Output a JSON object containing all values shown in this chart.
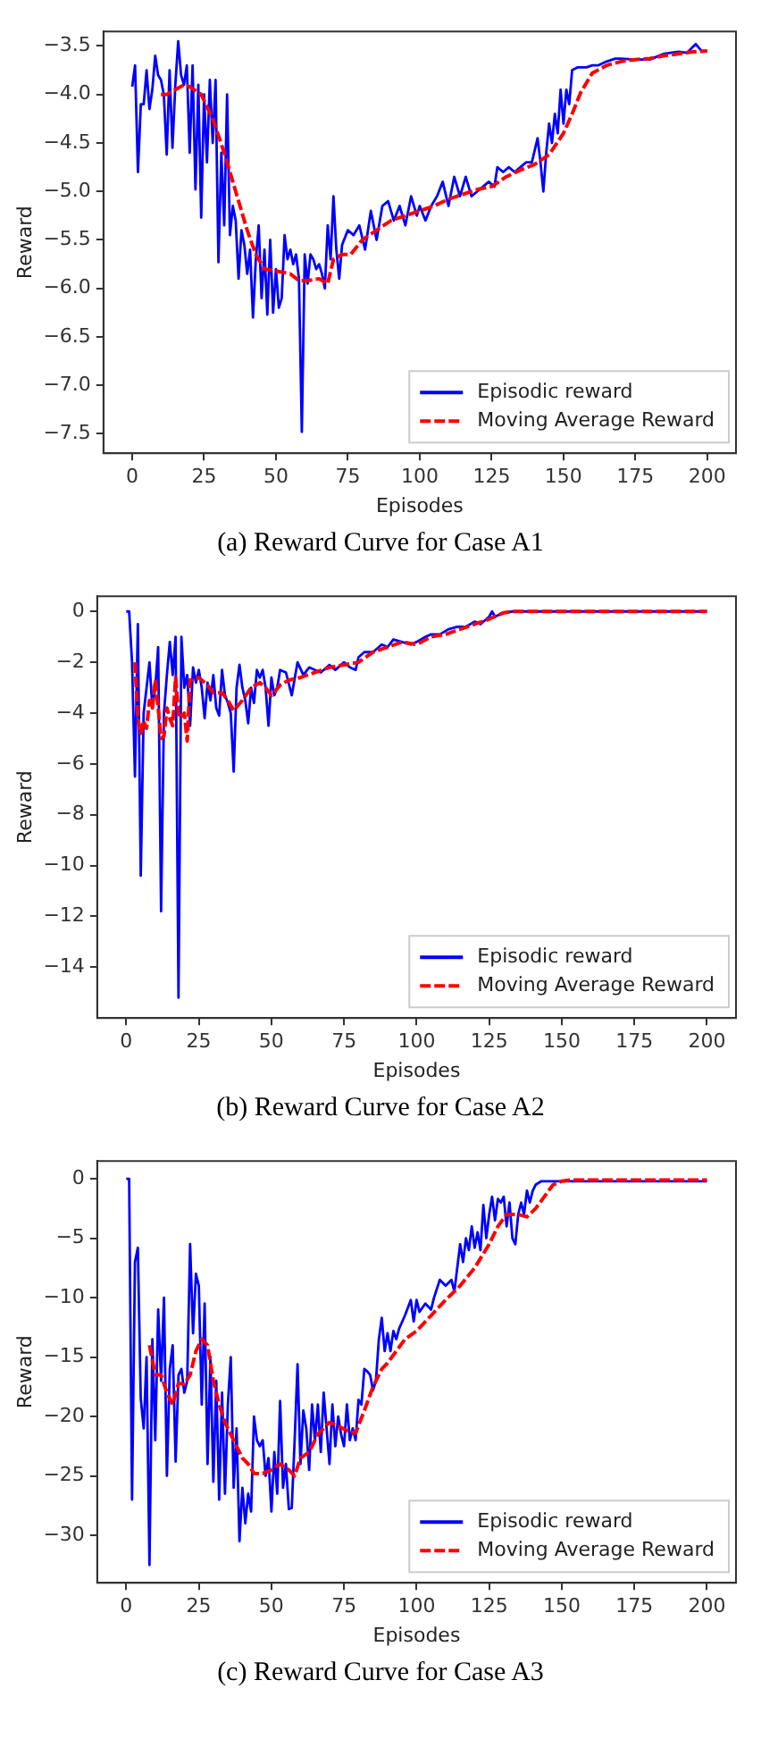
{
  "chart_data": [
    {
      "type": "line",
      "title": "(a) Reward Curve for Case A1",
      "xlabel": "Episodes",
      "ylabel": "Reward",
      "xlim": [
        -10,
        210
      ],
      "xticks": [
        0,
        25,
        50,
        75,
        100,
        125,
        150,
        175,
        200
      ],
      "ylim": [
        -7.7,
        -3.35
      ],
      "yticks": [
        -7.5,
        {
          "value": -7,
          "label": "−7.0"
        },
        -6.5,
        {
          "value": -6,
          "label": "−6.0"
        },
        -5.5,
        {
          "value": -5,
          "label": "−5.0"
        },
        -4.5,
        {
          "value": -4,
          "label": "−4.0"
        },
        -3.5
      ],
      "grid": false,
      "legend": "bottom right",
      "marker": "none",
      "series": [
        {
          "name": "Episodic reward",
          "color": "#0000ff",
          "line_style": "solid",
          "x": [
            0,
            1,
            2,
            3,
            4,
            5,
            6,
            7,
            8,
            9,
            10,
            11,
            12,
            13,
            14,
            15,
            16,
            17,
            18,
            19,
            20,
            21,
            22,
            23,
            24,
            25,
            26,
            27,
            28,
            29,
            30,
            31,
            32,
            33,
            34,
            35,
            36,
            37,
            38,
            39,
            40,
            41,
            42,
            43,
            44,
            45,
            46,
            47,
            48,
            49,
            50,
            51,
            52,
            53,
            54,
            55,
            56,
            57,
            58,
            59,
            60,
            61,
            62,
            63,
            64,
            65,
            66,
            67,
            68,
            69,
            70,
            71,
            72,
            73,
            75,
            77,
            79,
            81,
            83,
            85,
            87,
            89,
            91,
            93,
            95,
            97,
            99,
            100,
            102,
            104,
            106,
            108,
            110,
            112,
            114,
            116,
            118,
            120,
            122,
            124,
            126,
            127,
            129,
            131,
            133,
            135,
            137,
            139,
            141,
            142,
            143,
            144,
            145,
            146,
            147,
            148,
            149,
            150,
            151,
            152,
            153,
            155,
            158,
            160,
            162,
            165,
            168,
            170,
            175,
            180,
            185,
            190,
            193,
            196,
            198,
            200
          ],
          "values": [
            -3.92,
            -3.7,
            -4.8,
            -4.1,
            -4.1,
            -3.75,
            -4.15,
            -3.95,
            -3.6,
            -3.8,
            -3.85,
            -4.0,
            -4.62,
            -3.75,
            -4.55,
            -3.9,
            -3.45,
            -3.8,
            -3.9,
            -3.7,
            -4.6,
            -3.7,
            -4.98,
            -3.9,
            -5.27,
            -4.0,
            -4.7,
            -3.85,
            -4.5,
            -3.85,
            -5.73,
            -4.6,
            -5.35,
            -4.0,
            -5.45,
            -5.15,
            -5.3,
            -5.9,
            -5.4,
            -5.55,
            -5.85,
            -5.6,
            -6.3,
            -5.7,
            -5.35,
            -6.1,
            -5.6,
            -6.27,
            -5.5,
            -6.25,
            -5.8,
            -6.2,
            -6.1,
            -5.45,
            -5.7,
            -5.6,
            -5.75,
            -5.65,
            -5.9,
            -7.48,
            -5.65,
            -5.95,
            -5.65,
            -5.7,
            -5.8,
            -5.75,
            -5.85,
            -6.0,
            -5.35,
            -5.7,
            -5.05,
            -5.6,
            -5.9,
            -5.55,
            -5.4,
            -5.45,
            -5.35,
            -5.6,
            -5.2,
            -5.5,
            -5.15,
            -5.1,
            -5.3,
            -5.15,
            -5.35,
            -5.05,
            -5.25,
            -5.15,
            -5.3,
            -5.15,
            -5.05,
            -4.9,
            -5.15,
            -4.85,
            -5.05,
            -4.85,
            -5.05,
            -5.0,
            -4.95,
            -4.9,
            -4.95,
            -4.75,
            -4.8,
            -4.75,
            -4.8,
            -4.75,
            -4.7,
            -4.7,
            -4.45,
            -4.7,
            -5.0,
            -4.6,
            -4.3,
            -4.5,
            -4.2,
            -4.4,
            -3.95,
            -4.3,
            -3.95,
            -4.1,
            -3.75,
            -3.72,
            -3.72,
            -3.7,
            -3.7,
            -3.66,
            -3.63,
            -3.63,
            -3.64,
            -3.64,
            -3.58,
            -3.56,
            -3.57,
            -3.48,
            -3.55,
            -3.56
          ]
        },
        {
          "name": "Moving Average Reward",
          "color": "#ff0000",
          "line_style": "dashed",
          "x": [
            10,
            12,
            15,
            18,
            20,
            24,
            28,
            32,
            36,
            40,
            43,
            46,
            50,
            55,
            58,
            61,
            65,
            68,
            70,
            73,
            76,
            80,
            85,
            90,
            95,
            100,
            105,
            110,
            115,
            120,
            125,
            130,
            135,
            140,
            145,
            150,
            153,
            156,
            160,
            165,
            170,
            175,
            180,
            185,
            190,
            195,
            200
          ],
          "values": [
            -4.0,
            -4.0,
            -3.95,
            -3.9,
            -3.92,
            -4.0,
            -4.25,
            -4.6,
            -5.0,
            -5.4,
            -5.65,
            -5.8,
            -5.82,
            -5.85,
            -5.92,
            -5.92,
            -5.9,
            -5.95,
            -5.7,
            -5.65,
            -5.65,
            -5.5,
            -5.4,
            -5.3,
            -5.25,
            -5.2,
            -5.15,
            -5.08,
            -5.03,
            -4.98,
            -4.95,
            -4.85,
            -4.78,
            -4.72,
            -4.62,
            -4.4,
            -4.2,
            -3.98,
            -3.78,
            -3.7,
            -3.66,
            -3.64,
            -3.63,
            -3.6,
            -3.58,
            -3.56,
            -3.55
          ]
        }
      ]
    },
    {
      "type": "line",
      "title": "(b) Reward Curve for Case A2",
      "xlabel": "Episodes",
      "ylabel": "Reward",
      "xlim": [
        -10,
        210
      ],
      "xticks": [
        0,
        25,
        50,
        75,
        100,
        125,
        150,
        175,
        200
      ],
      "ylim": [
        -16,
        0.6
      ],
      "yticks": [
        -14,
        -12,
        -10,
        -8,
        -6,
        -4,
        -2,
        0
      ],
      "grid": false,
      "legend": "bottom right",
      "marker": "none",
      "series": [
        {
          "name": "Episodic reward",
          "color": "#0000ff",
          "line_style": "solid",
          "x": [
            0,
            1,
            2,
            3,
            4,
            5,
            6,
            7,
            8,
            9,
            10,
            11,
            12,
            13,
            14,
            15,
            16,
            17,
            18,
            19,
            20,
            21,
            22,
            23,
            24,
            25,
            26,
            27,
            28,
            29,
            30,
            31,
            32,
            33,
            34,
            35,
            36,
            37,
            38,
            39,
            40,
            41,
            42,
            43,
            44,
            45,
            46,
            47,
            48,
            49,
            50,
            51,
            52,
            53,
            55,
            57,
            59,
            61,
            63,
            65,
            67,
            70,
            72,
            75,
            77,
            79,
            80,
            82,
            85,
            88,
            90,
            92,
            95,
            98,
            100,
            103,
            105,
            108,
            111,
            114,
            117,
            120,
            122,
            125,
            126,
            127,
            130,
            133,
            140,
            160,
            180,
            200
          ],
          "values": [
            0,
            0,
            -2,
            -6.5,
            -0.5,
            -10.4,
            -4,
            -3,
            -2,
            -3.8,
            -3,
            -1.4,
            -11.8,
            -4,
            -2.5,
            -1.2,
            -2.5,
            -1.0,
            -15.2,
            -1.0,
            -3,
            -2.5,
            -4.5,
            -2.2,
            -2.8,
            -2.3,
            -3,
            -4.2,
            -2.8,
            -3.5,
            -2.5,
            -3.8,
            -4.1,
            -2.3,
            -3.3,
            -3.6,
            -4.0,
            -6.3,
            -3.0,
            -2.1,
            -3,
            -3.5,
            -4.4,
            -3.0,
            -3.6,
            -2.3,
            -2.6,
            -2.3,
            -3.0,
            -4.5,
            -2.6,
            -3.3,
            -3.0,
            -2.3,
            -2.4,
            -3.3,
            -2.0,
            -2.5,
            -2.2,
            -2.3,
            -2.4,
            -2.1,
            -2.3,
            -2.0,
            -2.2,
            -2.3,
            -1.8,
            -1.6,
            -1.6,
            -1.3,
            -1.4,
            -1.1,
            -1.2,
            -1.3,
            -1.2,
            -1.0,
            -0.9,
            -0.9,
            -0.7,
            -0.6,
            -0.6,
            -0.4,
            -0.5,
            -0.2,
            0,
            -0.2,
            -0.05,
            0,
            0,
            0,
            0,
            0
          ]
        },
        {
          "name": "Moving Average Reward",
          "color": "#ff0000",
          "line_style": "dashed",
          "x": [
            3,
            4,
            5,
            6,
            7,
            8,
            9,
            10,
            11,
            12,
            13,
            14,
            15,
            16,
            17,
            18,
            19,
            20,
            21,
            22,
            25,
            28,
            30,
            33,
            35,
            37,
            40,
            43,
            46,
            48,
            50,
            53,
            56,
            60,
            65,
            70,
            75,
            80,
            85,
            90,
            95,
            100,
            105,
            110,
            115,
            120,
            125,
            130,
            133,
            200
          ],
          "values": [
            -2.0,
            -4.2,
            -4.8,
            -4.3,
            -4.6,
            -3.5,
            -3.8,
            -2.7,
            -3.8,
            -5.0,
            -4.9,
            -3.8,
            -4.2,
            -4.5,
            -2.6,
            -4.0,
            -4.2,
            -4.0,
            -5.1,
            -2.7,
            -2.6,
            -2.9,
            -3.2,
            -3.2,
            -3.5,
            -3.9,
            -3.5,
            -3.0,
            -2.8,
            -3.0,
            -3.3,
            -2.9,
            -2.7,
            -2.6,
            -2.4,
            -2.2,
            -2.1,
            -2.0,
            -1.6,
            -1.4,
            -1.2,
            -1.3,
            -1.0,
            -0.9,
            -0.7,
            -0.5,
            -0.3,
            -0.05,
            0,
            0
          ]
        }
      ]
    },
    {
      "type": "line",
      "title": "(c) Reward Curve for Case A3",
      "xlabel": "Episodes",
      "ylabel": "Reward",
      "xlim": [
        -10,
        210
      ],
      "xticks": [
        0,
        25,
        50,
        75,
        100,
        125,
        150,
        175,
        200
      ],
      "ylim": [
        -34,
        1.5
      ],
      "yticks": [
        -30,
        -25,
        -20,
        -15,
        -10,
        -5,
        0
      ],
      "grid": false,
      "legend": "bottom right",
      "marker": "none",
      "series": [
        {
          "name": "Episodic reward",
          "color": "#0000ff",
          "line_style": "solid",
          "x": [
            0,
            1,
            2,
            3,
            4,
            5,
            6,
            7,
            8,
            9,
            10,
            11,
            12,
            13,
            14,
            15,
            16,
            17,
            18,
            19,
            20,
            21,
            22,
            23,
            24,
            25,
            26,
            27,
            28,
            29,
            30,
            31,
            32,
            33,
            34,
            35,
            36,
            37,
            38,
            39,
            40,
            41,
            42,
            43,
            44,
            45,
            46,
            47,
            48,
            49,
            50,
            51,
            52,
            53,
            54,
            55,
            56,
            57,
            58,
            59,
            60,
            61,
            62,
            63,
            64,
            65,
            66,
            67,
            68,
            69,
            70,
            71,
            72,
            73,
            74,
            75,
            76,
            77,
            78,
            79,
            80,
            81,
            82,
            83,
            84,
            85,
            86,
            87,
            88,
            89,
            90,
            91,
            92,
            93,
            94,
            96,
            98,
            99,
            100,
            101,
            103,
            105,
            106,
            108,
            110,
            112,
            113,
            115,
            116,
            117,
            118,
            119,
            120,
            121,
            122,
            123,
            124,
            125,
            126,
            127,
            128,
            129,
            130,
            131,
            132,
            133,
            134,
            135,
            136,
            137,
            138,
            139,
            140,
            141,
            143,
            145,
            160,
            180,
            200
          ],
          "values": [
            0,
            0,
            -27,
            -7,
            -5.8,
            -18.5,
            -21,
            -15,
            -32.5,
            -13.5,
            -22,
            -11,
            -17,
            -10,
            -25,
            -16,
            -14,
            -23.8,
            -16.5,
            -16,
            -18,
            -17,
            -5.5,
            -13,
            -8,
            -9,
            -19,
            -10.5,
            -24,
            -15,
            -25.5,
            -17,
            -27,
            -18,
            -26.5,
            -19,
            -15,
            -26,
            -21,
            -30.5,
            -26,
            -29,
            -26.5,
            -28,
            -20,
            -22,
            -22.5,
            -22,
            -25,
            -23.5,
            -28,
            -23,
            -26.5,
            -18.7,
            -26,
            -24,
            -27.8,
            -27.7,
            -22,
            -15.6,
            -24,
            -19.5,
            -21,
            -24.5,
            -19,
            -22,
            -19,
            -23,
            -18,
            -21,
            -24,
            -19,
            -22.5,
            -20,
            -21.5,
            -22.5,
            -19,
            -22,
            -21,
            -22,
            -18.6,
            -19,
            -16,
            -16.2,
            -16.5,
            -17.8,
            -17,
            -13.5,
            -11.7,
            -14.5,
            -13,
            -14.5,
            -12.8,
            -13.5,
            -12.6,
            -11.5,
            -10.2,
            -12,
            -10.2,
            -11.2,
            -10.5,
            -11,
            -10,
            -8.5,
            -9,
            -8.5,
            -9.5,
            -5.5,
            -7,
            -5,
            -6,
            -4,
            -5.8,
            -4.5,
            -6,
            -2.2,
            -5,
            -3,
            -1.5,
            -3.5,
            -1.7,
            -2,
            -1.5,
            -4,
            -2,
            -5,
            -5.5,
            -3,
            -2,
            -3,
            -1,
            -2,
            -1,
            -0.5,
            -0.2,
            -0.2,
            -0.2,
            -0.2,
            -0.2
          ]
        },
        {
          "name": "Moving Average Reward",
          "color": "#ff0000",
          "line_style": "dashed",
          "x": [
            8,
            10,
            12,
            14,
            16,
            18,
            20,
            22,
            24,
            26,
            28,
            30,
            32,
            34,
            36,
            38,
            40,
            42,
            44,
            47,
            50,
            53,
            56,
            58,
            60,
            63,
            66,
            68,
            70,
            73,
            76,
            79,
            82,
            85,
            88,
            90,
            93,
            96,
            100,
            105,
            110,
            115,
            120,
            125,
            128,
            131,
            135,
            138,
            141,
            144,
            147,
            150,
            153,
            200
          ],
          "values": [
            -14,
            -16.5,
            -16.5,
            -18,
            -19,
            -17.2,
            -17.3,
            -16.5,
            -14.5,
            -13.5,
            -14,
            -17,
            -19,
            -20.5,
            -21.5,
            -22.5,
            -23.5,
            -24,
            -24.8,
            -24.8,
            -24.5,
            -24,
            -24.5,
            -25,
            -23.5,
            -23,
            -21.5,
            -21,
            -20.5,
            -20.8,
            -21.2,
            -21.4,
            -19.5,
            -17.5,
            -16,
            -15.5,
            -14.5,
            -13.5,
            -12.8,
            -11.5,
            -10.2,
            -9,
            -7.5,
            -5.5,
            -4,
            -3,
            -3,
            -3.2,
            -2.5,
            -1.5,
            -0.5,
            -0.2,
            -0.1,
            -0.1
          ]
        }
      ]
    }
  ]
}
